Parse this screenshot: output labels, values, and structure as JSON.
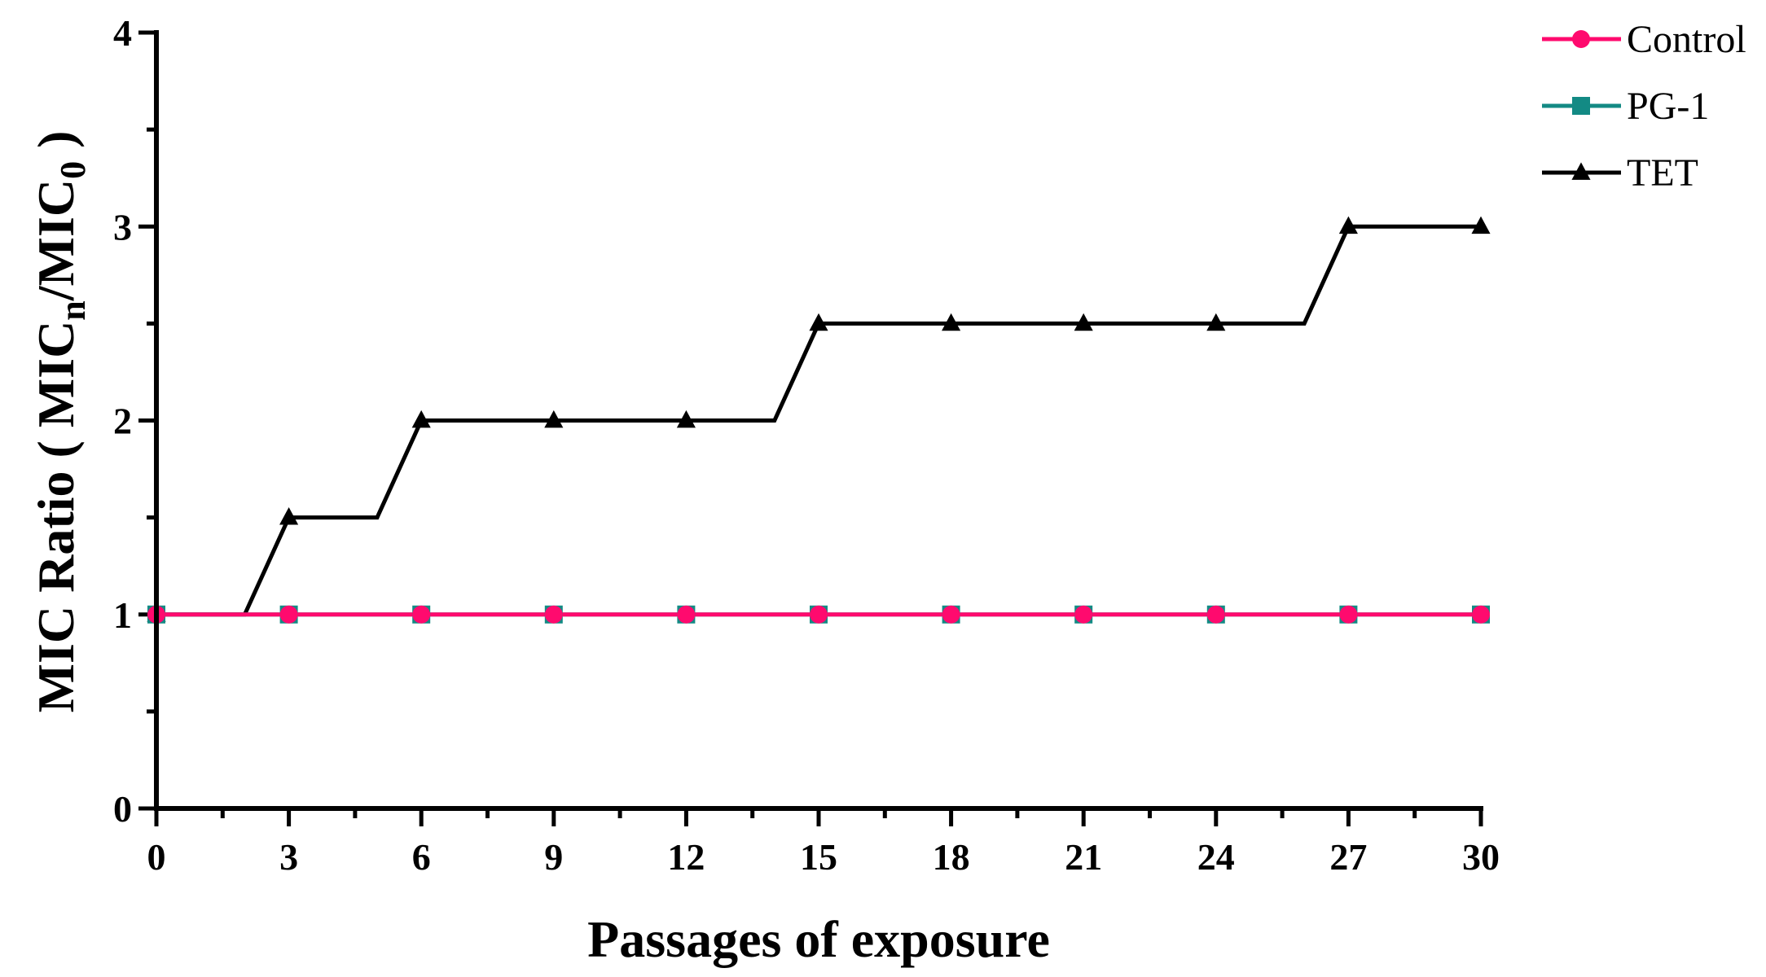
{
  "chart_data": {
    "type": "line",
    "xlabel": "Passages of exposure",
    "ylabel": {
      "prefix": "MIC Ratio ( MIC",
      "sub1": "n",
      "mid": "/MIC",
      "sub2": "0",
      "suffix": " )"
    },
    "xlim": [
      0,
      30
    ],
    "ylim": [
      0,
      4
    ],
    "x_ticks": [
      0,
      3,
      6,
      9,
      12,
      15,
      18,
      21,
      24,
      27,
      30
    ],
    "x_minor_ticks": [
      1.5,
      4.5,
      7.5,
      10.5,
      13.5,
      16.5,
      19.5,
      22.5,
      25.5,
      28.5
    ],
    "y_ticks": [
      0,
      1,
      2,
      3,
      4
    ],
    "y_minor_ticks": [
      0.5,
      1.5,
      2.5,
      3.5
    ],
    "grid": false,
    "legend_position": "top-right",
    "series": [
      {
        "name": "Control",
        "color": "#ff0a6e",
        "marker": "circle",
        "line": {
          "x": [
            0,
            30
          ],
          "y": [
            1,
            1
          ]
        },
        "points": {
          "x": [
            0,
            3,
            6,
            9,
            12,
            15,
            18,
            21,
            24,
            27,
            30
          ],
          "y": [
            1,
            1,
            1,
            1,
            1,
            1,
            1,
            1,
            1,
            1,
            1
          ]
        }
      },
      {
        "name": "PG-1",
        "color": "#138a84",
        "marker": "square",
        "line": {
          "x": [
            0,
            30
          ],
          "y": [
            1,
            1
          ]
        },
        "points": {
          "x": [
            0,
            3,
            6,
            9,
            12,
            15,
            18,
            21,
            24,
            27,
            30
          ],
          "y": [
            1,
            1,
            1,
            1,
            1,
            1,
            1,
            1,
            1,
            1,
            1
          ]
        }
      },
      {
        "name": "TET",
        "color": "#000000",
        "marker": "triangle",
        "line": {
          "x": [
            0,
            2,
            3,
            5,
            6,
            14,
            15,
            26,
            27,
            30
          ],
          "y": [
            1,
            1,
            1.5,
            1.5,
            2,
            2,
            2.5,
            2.5,
            3,
            3
          ]
        },
        "points": {
          "x": [
            0,
            3,
            6,
            9,
            12,
            15,
            18,
            21,
            24,
            27,
            30
          ],
          "y": [
            1,
            1.5,
            2,
            2,
            2,
            2.5,
            2.5,
            2.5,
            2.5,
            3,
            3
          ]
        }
      }
    ]
  }
}
